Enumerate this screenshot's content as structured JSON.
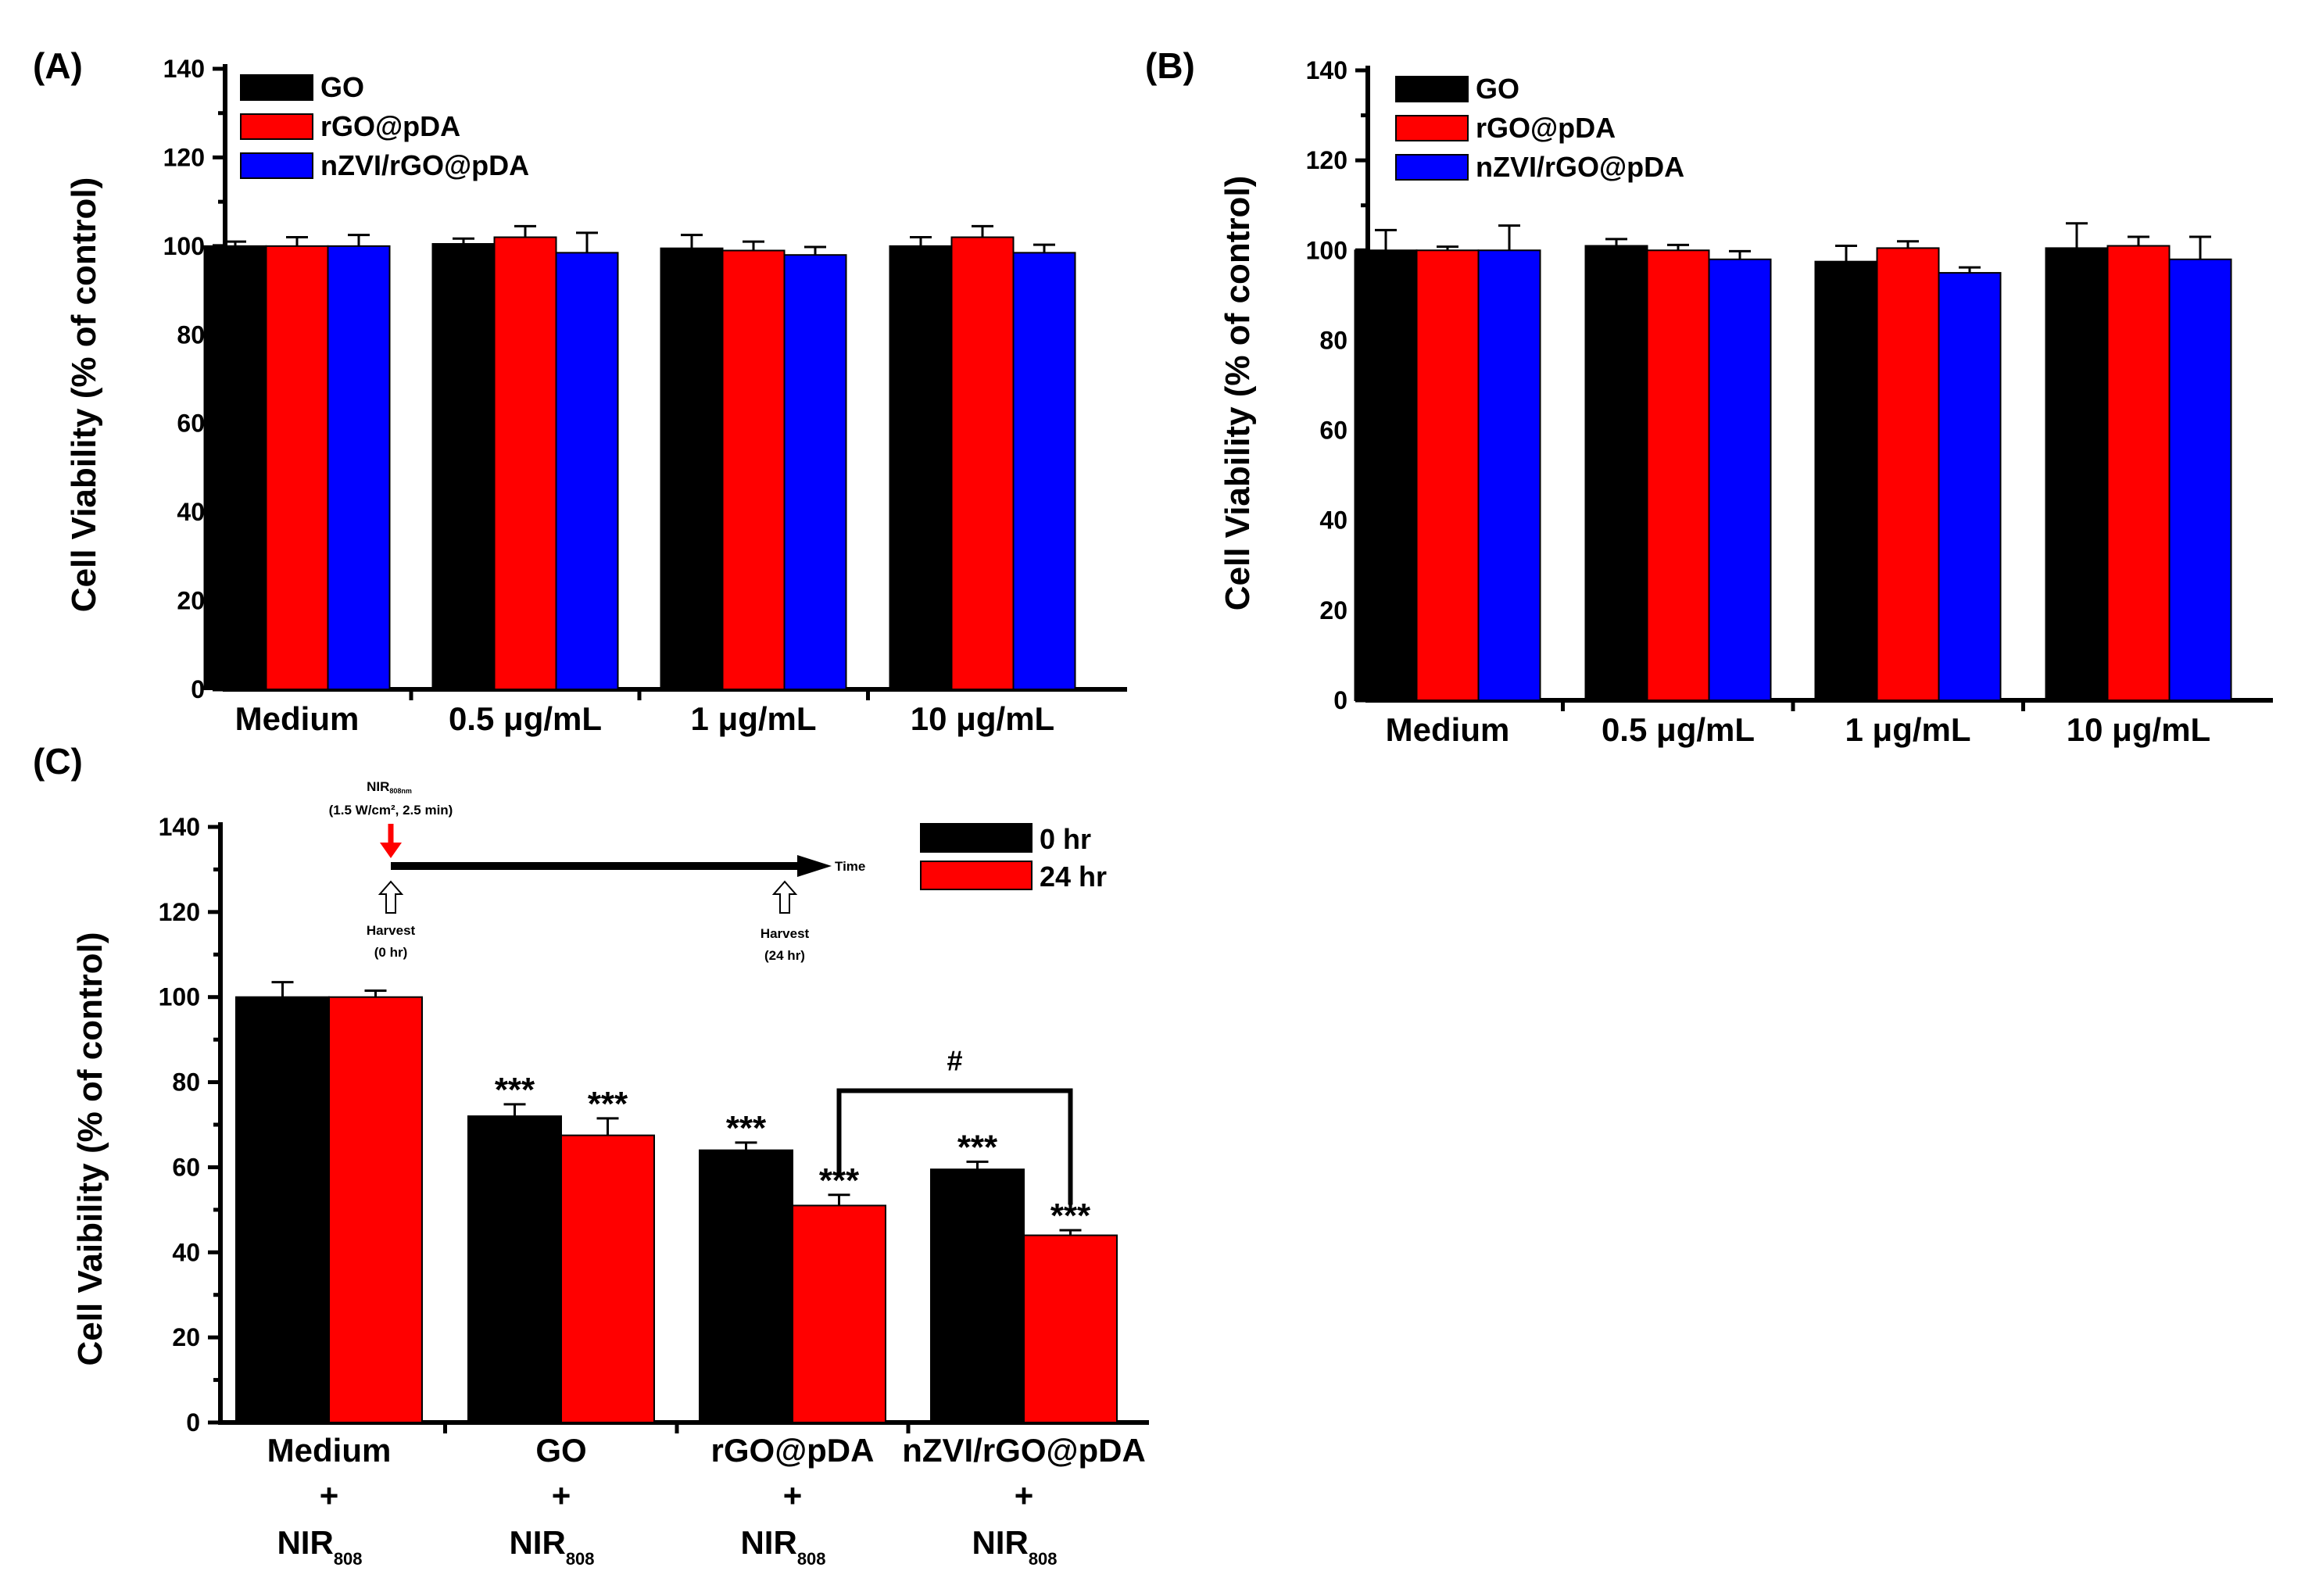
{
  "chart_data": [
    {
      "type": "bar",
      "panel": "(A)",
      "ylabel": "Cell Viability (% of control)",
      "ylim": [
        0,
        140
      ],
      "yticks": [
        0,
        20,
        40,
        60,
        80,
        100,
        120,
        140
      ],
      "categories": [
        "Medium",
        "0.5 μg/mL",
        "1 μg/mL",
        "10 μg/mL"
      ],
      "legend_position": "top-left",
      "series": [
        {
          "name": "GO",
          "color": "#000000",
          "values": [
            100,
            100.5,
            99.5,
            100
          ],
          "errors": [
            1.0,
            1.2,
            3.0,
            2.0
          ]
        },
        {
          "name": "rGO@pDA",
          "color": "#ff0000",
          "values": [
            100,
            102,
            99,
            102
          ],
          "errors": [
            2.0,
            2.5,
            2.0,
            2.5
          ]
        },
        {
          "name": "nZVI/rGO@pDA",
          "color": "#0000ff",
          "values": [
            100,
            98.5,
            98,
            98.5
          ],
          "errors": [
            2.5,
            4.5,
            1.8,
            1.8
          ]
        }
      ]
    },
    {
      "type": "bar",
      "panel": "(B)",
      "ylabel": "Cell Viability (% of control)",
      "ylim": [
        0,
        140
      ],
      "yticks": [
        0,
        20,
        40,
        60,
        80,
        100,
        120,
        140
      ],
      "categories": [
        "Medium",
        "0.5 μg/mL",
        "1 μg/mL",
        "10 μg/mL"
      ],
      "legend_position": "top-left",
      "series": [
        {
          "name": "GO",
          "color": "#000000",
          "values": [
            100,
            101,
            97.5,
            100.5
          ],
          "errors": [
            4.5,
            1.5,
            3.5,
            5.5
          ]
        },
        {
          "name": "rGO@pDA",
          "color": "#ff0000",
          "values": [
            100,
            100,
            100.5,
            101
          ],
          "errors": [
            0.8,
            1.2,
            1.5,
            2.0
          ]
        },
        {
          "name": "nZVI/rGO@pDA",
          "color": "#0000ff",
          "values": [
            100,
            98,
            95,
            98
          ],
          "errors": [
            5.5,
            1.8,
            1.2,
            5.0
          ]
        }
      ]
    },
    {
      "type": "bar",
      "panel": "(C)",
      "ylabel": "Cell Vaibility (% of control)",
      "ylim": [
        0,
        140
      ],
      "yticks": [
        0,
        20,
        40,
        60,
        80,
        100,
        120,
        140
      ],
      "categories": [
        {
          "name": "Medium",
          "plus": "+",
          "nir": "NIR",
          "sub": "808"
        },
        {
          "name": "GO",
          "plus": "+",
          "nir": "NIR",
          "sub": "808"
        },
        {
          "name": "rGO@pDA",
          "plus": "+",
          "nir": "NIR",
          "sub": "808"
        },
        {
          "name": "nZVI/rGO@pDA",
          "plus": "+",
          "nir": "NIR",
          "sub": "808"
        }
      ],
      "legend_position": "top-right",
      "series": [
        {
          "name": "0 hr",
          "color": "#000000",
          "values": [
            100,
            72,
            64,
            59.5
          ],
          "errors": [
            3.5,
            2.8,
            1.8,
            1.8
          ],
          "annotations": [
            "",
            "***",
            "***",
            "***"
          ]
        },
        {
          "name": "24 hr",
          "color": "#ff0000",
          "values": [
            100,
            67.5,
            51,
            44
          ],
          "errors": [
            1.5,
            4.0,
            2.5,
            1.2
          ],
          "annotations": [
            "",
            "***",
            "***",
            "***"
          ]
        }
      ],
      "significance": {
        "label": "#"
      },
      "inset": {
        "nir_label": "NIR",
        "nir_sub": "808nm",
        "nir_params": "(1.5 W/cm², 2.5 min)",
        "time_label": "Time",
        "harvest_0_line1": "Harvest",
        "harvest_0_line2": "(0 hr)",
        "harvest_24_line1": "Harvest",
        "harvest_24_line2": "(24 hr)"
      }
    }
  ]
}
